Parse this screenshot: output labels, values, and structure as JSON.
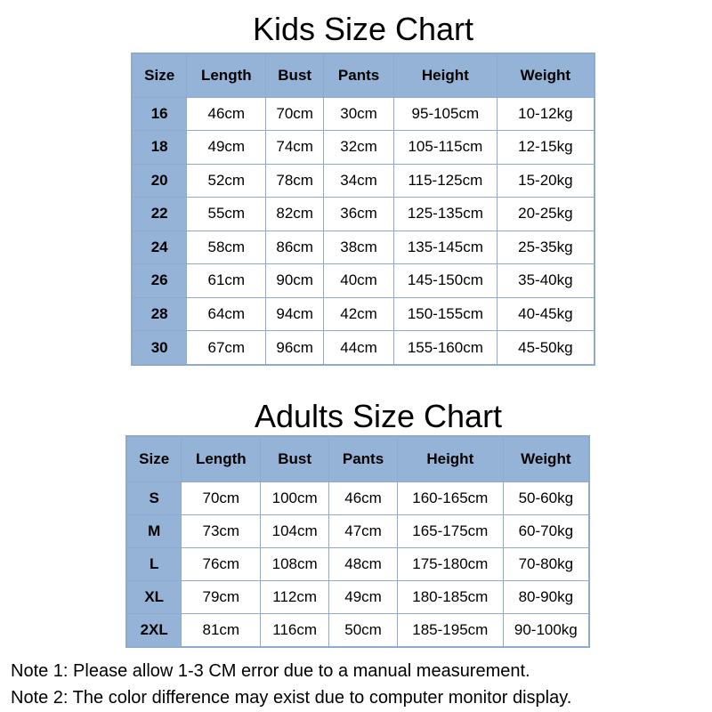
{
  "kids": {
    "title": "Kids Size Chart",
    "headers": [
      "Size",
      "Length",
      "Bust",
      "Pants",
      "Height",
      "Weight"
    ],
    "rows": [
      [
        "16",
        "46cm",
        "70cm",
        "30cm",
        "95-105cm",
        "10-12kg"
      ],
      [
        "18",
        "49cm",
        "74cm",
        "32cm",
        "105-115cm",
        "12-15kg"
      ],
      [
        "20",
        "52cm",
        "78cm",
        "34cm",
        "115-125cm",
        "15-20kg"
      ],
      [
        "22",
        "55cm",
        "82cm",
        "36cm",
        "125-135cm",
        "20-25kg"
      ],
      [
        "24",
        "58cm",
        "86cm",
        "38cm",
        "135-145cm",
        "25-35kg"
      ],
      [
        "26",
        "61cm",
        "90cm",
        "40cm",
        "145-150cm",
        "35-40kg"
      ],
      [
        "28",
        "64cm",
        "94cm",
        "42cm",
        "150-155cm",
        "40-45kg"
      ],
      [
        "30",
        "67cm",
        "96cm",
        "44cm",
        "155-160cm",
        "45-50kg"
      ]
    ]
  },
  "adults": {
    "title": "Adults Size Chart",
    "headers": [
      "Size",
      "Length",
      "Bust",
      "Pants",
      "Height",
      "Weight"
    ],
    "rows": [
      [
        "S",
        "70cm",
        "100cm",
        "46cm",
        "160-165cm",
        "50-60kg"
      ],
      [
        "M",
        "73cm",
        "104cm",
        "47cm",
        "165-175cm",
        "60-70kg"
      ],
      [
        "L",
        "76cm",
        "108cm",
        "48cm",
        "175-180cm",
        "70-80kg"
      ],
      [
        "XL",
        "79cm",
        "112cm",
        "49cm",
        "180-185cm",
        "80-90kg"
      ],
      [
        "2XL",
        "81cm",
        "116cm",
        "50cm",
        "185-195cm",
        "90-100kg"
      ]
    ]
  },
  "notes": [
    "Note 1: Please allow 1-3 CM error due to a manual measurement.",
    "Note 2: The color difference may exist due to computer monitor display."
  ],
  "colors": {
    "header_fill": "#95b3d7",
    "border": "#8eaad0"
  }
}
